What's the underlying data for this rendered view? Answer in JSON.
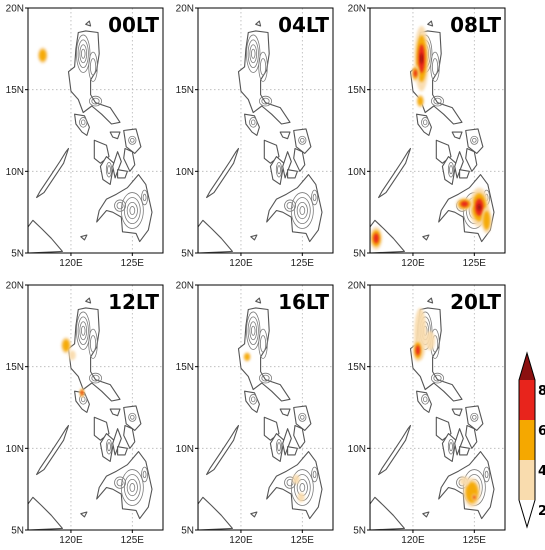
{
  "panels": [
    {
      "time_label": "00LT",
      "hotspots": [
        {
          "lon": 117.7,
          "lat": 17.1,
          "level": 4,
          "rx": 0.4,
          "ry": 0.5
        }
      ]
    },
    {
      "time_label": "04LT",
      "hotspots": []
    },
    {
      "time_label": "08LT",
      "hotspots": [
        {
          "lon": 120.7,
          "lat": 16.9,
          "level": 8,
          "rx": 0.6,
          "ry": 2.0
        },
        {
          "lon": 120.2,
          "lat": 16.0,
          "level": 6,
          "rx": 0.3,
          "ry": 0.5
        },
        {
          "lon": 120.6,
          "lat": 14.3,
          "level": 4,
          "rx": 0.3,
          "ry": 0.4
        },
        {
          "lon": 125.4,
          "lat": 7.8,
          "level": 8,
          "rx": 0.8,
          "ry": 1.2
        },
        {
          "lon": 124.2,
          "lat": 8.0,
          "level": 6,
          "rx": 0.7,
          "ry": 0.4
        },
        {
          "lon": 126.0,
          "lat": 7.0,
          "level": 4,
          "rx": 0.4,
          "ry": 0.8
        },
        {
          "lon": 117.0,
          "lat": 5.9,
          "level": 6,
          "rx": 0.5,
          "ry": 0.7
        }
      ]
    },
    {
      "time_label": "12LT",
      "hotspots": [
        {
          "lon": 119.6,
          "lat": 16.3,
          "level": 4,
          "rx": 0.4,
          "ry": 0.5
        },
        {
          "lon": 120.1,
          "lat": 15.7,
          "level": 2,
          "rx": 0.3,
          "ry": 0.3
        },
        {
          "lon": 120.9,
          "lat": 13.4,
          "level": 6,
          "rx": 0.2,
          "ry": 0.3
        }
      ]
    },
    {
      "time_label": "16LT",
      "hotspots": [
        {
          "lon": 120.5,
          "lat": 15.6,
          "level": 4,
          "rx": 0.3,
          "ry": 0.3
        },
        {
          "lon": 124.5,
          "lat": 8.1,
          "level": 2,
          "rx": 0.3,
          "ry": 0.3
        },
        {
          "lon": 124.9,
          "lat": 7.0,
          "level": 2,
          "rx": 0.3,
          "ry": 0.3
        }
      ]
    },
    {
      "time_label": "20LT",
      "hotspots": [
        {
          "lon": 120.6,
          "lat": 17.0,
          "level": 2,
          "rx": 0.5,
          "ry": 1.6
        },
        {
          "lon": 120.4,
          "lat": 16.0,
          "level": 6,
          "rx": 0.4,
          "ry": 0.7
        },
        {
          "lon": 121.4,
          "lat": 16.6,
          "level": 2,
          "rx": 0.4,
          "ry": 0.6
        },
        {
          "lon": 124.8,
          "lat": 7.3,
          "level": 4,
          "rx": 0.7,
          "ry": 0.9
        },
        {
          "lon": 125.0,
          "lat": 7.0,
          "level": 6,
          "rx": 0.2,
          "ry": 0.2
        },
        {
          "lon": 124.2,
          "lat": 8.0,
          "level": 2,
          "rx": 0.4,
          "ry": 0.3
        }
      ]
    }
  ],
  "x_ticks": [
    "120E",
    "125E"
  ],
  "y_ticks": [
    "20N",
    "15N",
    "10N",
    "5N"
  ],
  "colorbar": {
    "labels": [
      "8",
      "6",
      "4",
      "2"
    ],
    "colors": [
      "#8b1010",
      "#e8241c",
      "#f5a800",
      "#f9dcae",
      "#ffffff"
    ]
  },
  "fill_colors": {
    "2": "#f9dcae",
    "4": "#f5a800",
    "6": "#e8241c",
    "8": "#8b1010"
  },
  "land_contour_color": "#555555"
}
